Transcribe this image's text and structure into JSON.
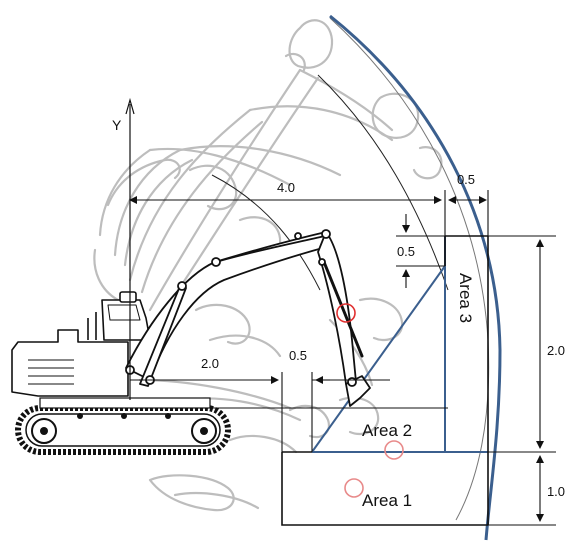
{
  "axis": {
    "y_label": "Y"
  },
  "areas": {
    "area1": "Area 1",
    "area2": "Area 2",
    "area3": "Area 3"
  },
  "dimensions": {
    "reach": "4.0",
    "top_gap": "0.5",
    "step_height": "0.5",
    "bottom_left": "2.0",
    "bottom_gap": "0.5",
    "right_height": "2.0",
    "lower_height": "1.0"
  },
  "colors": {
    "boundary_blue": "#3b5f8e",
    "ghost_gray": "#b7b7b7",
    "marker_red": "#e03030",
    "line_black": "#111111"
  }
}
